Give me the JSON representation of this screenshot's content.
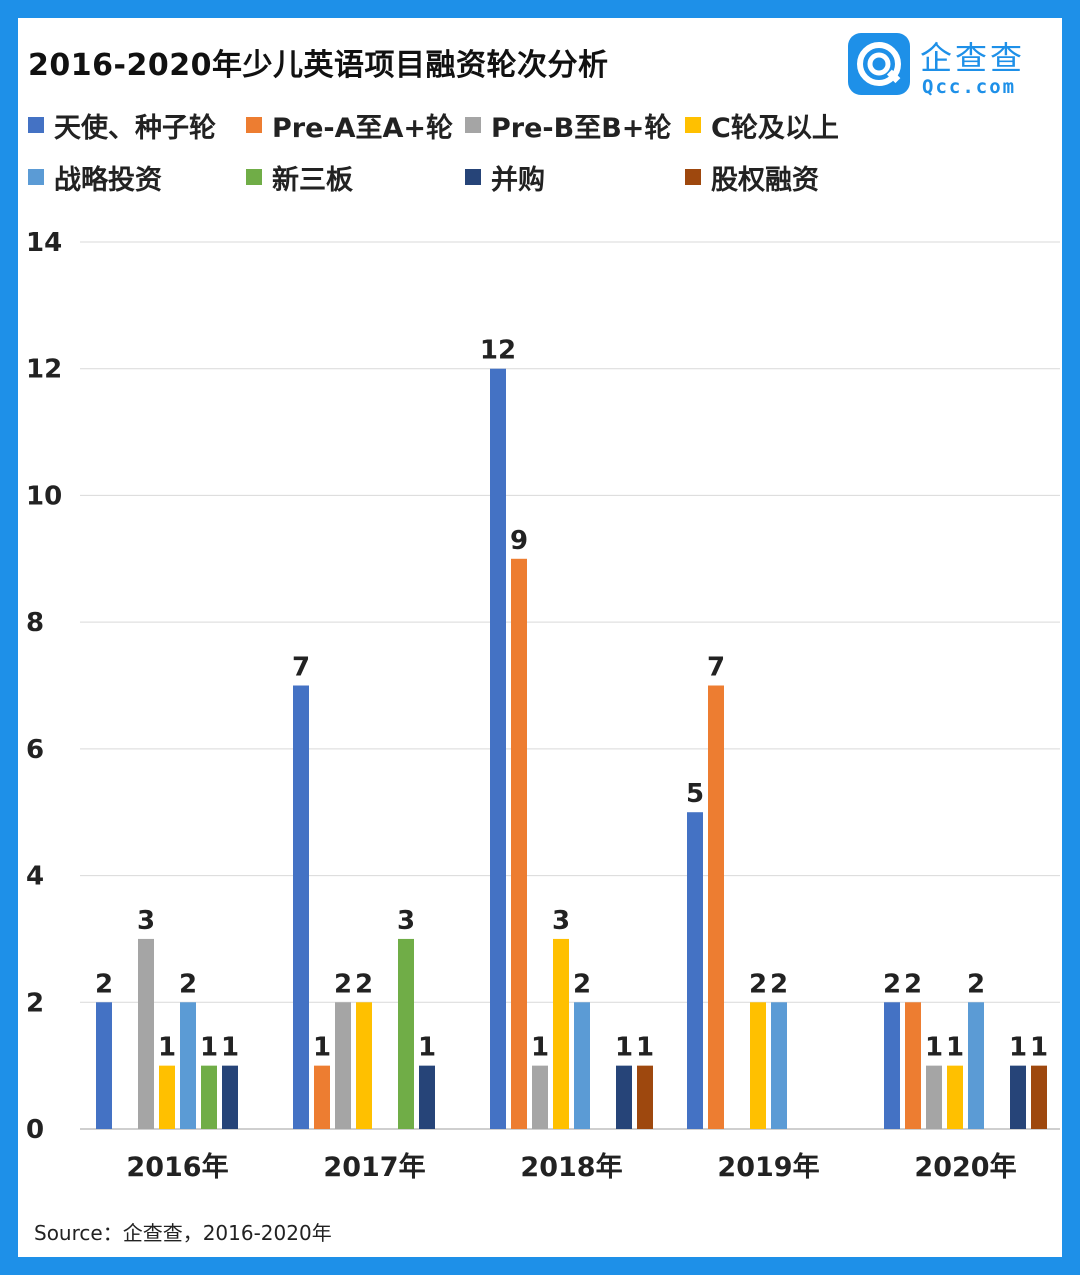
{
  "title": "2016-2020年少儿英语项目融资轮次分析",
  "logo": {
    "name": "企查查",
    "sub": "Qcc.com",
    "icon": "qcc-logo-icon"
  },
  "source": "Source：企查查，2016-2020年",
  "colors": {
    "frame": "#1e90e8",
    "series": [
      "#4472c4",
      "#ed7d31",
      "#a5a5a5",
      "#ffc000",
      "#5b9bd5",
      "#70ad47",
      "#264478",
      "#9e480e"
    ]
  },
  "chart_data": {
    "type": "bar",
    "title": "2016-2020年少儿英语项目融资轮次分析",
    "xlabel": "",
    "ylabel": "",
    "ylim": [
      0,
      14
    ],
    "yticks": [
      0,
      2,
      4,
      6,
      8,
      10,
      12,
      14
    ],
    "grid": true,
    "legend_position": "top",
    "categories": [
      "2016年",
      "2017年",
      "2018年",
      "2019年",
      "2020年"
    ],
    "series": [
      {
        "name": "天使、种子轮",
        "values": [
          2,
          7,
          12,
          5,
          2
        ]
      },
      {
        "name": "Pre-A至A+轮",
        "values": [
          0,
          1,
          9,
          7,
          2
        ]
      },
      {
        "name": "Pre-B至B+轮",
        "values": [
          3,
          2,
          1,
          0,
          1
        ]
      },
      {
        "name": "C轮及以上",
        "values": [
          1,
          2,
          3,
          2,
          1
        ]
      },
      {
        "name": "战略投资",
        "values": [
          2,
          0,
          2,
          2,
          2
        ]
      },
      {
        "name": "新三板",
        "values": [
          1,
          3,
          0,
          0,
          0
        ]
      },
      {
        "name": "并购",
        "values": [
          1,
          1,
          1,
          0,
          1
        ]
      },
      {
        "name": "股权融资",
        "values": [
          0,
          0,
          1,
          0,
          1
        ]
      }
    ]
  }
}
